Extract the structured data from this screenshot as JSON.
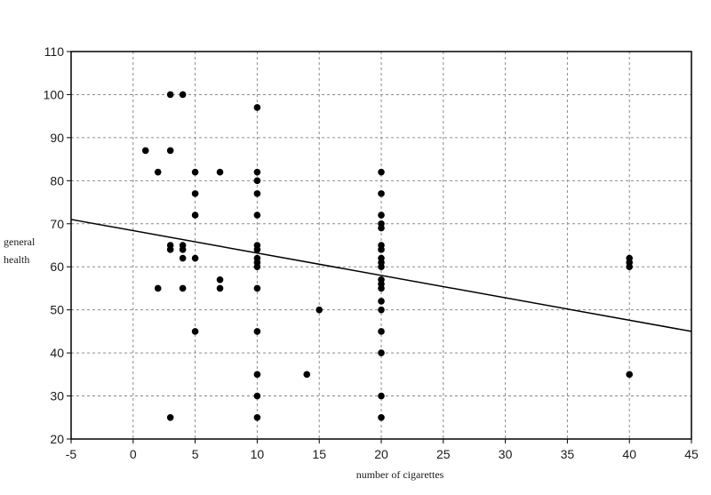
{
  "chart_data": {
    "type": "scatter",
    "title": "",
    "xlabel": "number of cigarettes",
    "ylabel_lines": [
      "general",
      "health"
    ],
    "xlim": [
      -5,
      45
    ],
    "ylim": [
      20,
      110
    ],
    "x_ticks": [
      -5,
      0,
      5,
      10,
      15,
      20,
      25,
      30,
      35,
      40,
      45
    ],
    "y_ticks": [
      20,
      30,
      40,
      50,
      60,
      70,
      80,
      90,
      100,
      110
    ],
    "grid": true,
    "points": [
      {
        "x": 1,
        "y": 87
      },
      {
        "x": 2,
        "y": 82
      },
      {
        "x": 2,
        "y": 55
      },
      {
        "x": 3,
        "y": 100
      },
      {
        "x": 3,
        "y": 87
      },
      {
        "x": 3,
        "y": 65
      },
      {
        "x": 3,
        "y": 64
      },
      {
        "x": 3,
        "y": 25
      },
      {
        "x": 4,
        "y": 100
      },
      {
        "x": 4,
        "y": 65
      },
      {
        "x": 4,
        "y": 64
      },
      {
        "x": 4,
        "y": 62
      },
      {
        "x": 4,
        "y": 55
      },
      {
        "x": 5,
        "y": 82
      },
      {
        "x": 5,
        "y": 77
      },
      {
        "x": 5,
        "y": 72
      },
      {
        "x": 5,
        "y": 62
      },
      {
        "x": 5,
        "y": 45
      },
      {
        "x": 7,
        "y": 82
      },
      {
        "x": 7,
        "y": 57
      },
      {
        "x": 7,
        "y": 55
      },
      {
        "x": 10,
        "y": 97
      },
      {
        "x": 10,
        "y": 82
      },
      {
        "x": 10,
        "y": 80
      },
      {
        "x": 10,
        "y": 77
      },
      {
        "x": 10,
        "y": 72
      },
      {
        "x": 10,
        "y": 65
      },
      {
        "x": 10,
        "y": 64
      },
      {
        "x": 10,
        "y": 62
      },
      {
        "x": 10,
        "y": 61
      },
      {
        "x": 10,
        "y": 60
      },
      {
        "x": 10,
        "y": 55
      },
      {
        "x": 10,
        "y": 45
      },
      {
        "x": 10,
        "y": 35
      },
      {
        "x": 10,
        "y": 30
      },
      {
        "x": 10,
        "y": 25
      },
      {
        "x": 14,
        "y": 35
      },
      {
        "x": 15,
        "y": 50
      },
      {
        "x": 20,
        "y": 82
      },
      {
        "x": 20,
        "y": 77
      },
      {
        "x": 20,
        "y": 72
      },
      {
        "x": 20,
        "y": 70
      },
      {
        "x": 20,
        "y": 69
      },
      {
        "x": 20,
        "y": 65
      },
      {
        "x": 20,
        "y": 64
      },
      {
        "x": 20,
        "y": 62
      },
      {
        "x": 20,
        "y": 61
      },
      {
        "x": 20,
        "y": 60
      },
      {
        "x": 20,
        "y": 57
      },
      {
        "x": 20,
        "y": 56
      },
      {
        "x": 20,
        "y": 55
      },
      {
        "x": 20,
        "y": 52
      },
      {
        "x": 20,
        "y": 50
      },
      {
        "x": 20,
        "y": 45
      },
      {
        "x": 20,
        "y": 40
      },
      {
        "x": 20,
        "y": 30
      },
      {
        "x": 20,
        "y": 25
      },
      {
        "x": 40,
        "y": 62
      },
      {
        "x": 40,
        "y": 61
      },
      {
        "x": 40,
        "y": 60
      },
      {
        "x": 40,
        "y": 35
      }
    ],
    "fit_line": {
      "x": [
        -5,
        45
      ],
      "y": [
        71,
        45
      ]
    }
  }
}
